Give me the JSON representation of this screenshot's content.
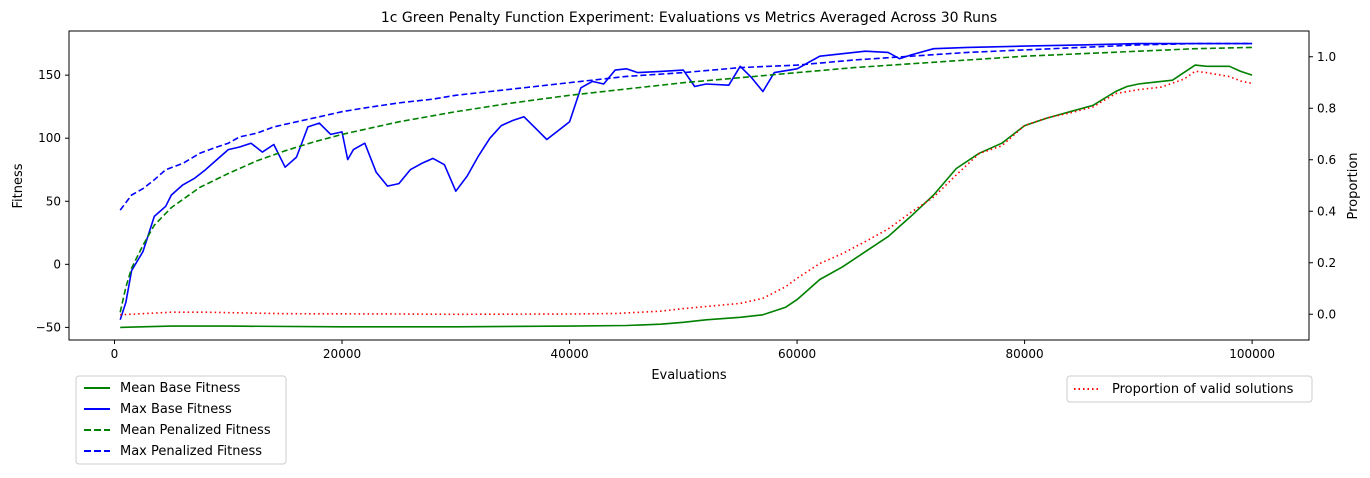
{
  "chart_data": {
    "type": "line",
    "title": "1c Green Penalty Function Experiment: Evaluations vs Metrics Averaged Across 30 Runs",
    "xlabel": "Evaluations",
    "ylabel": "Fitness",
    "y2label": "Proportion",
    "xlim": [
      -4000,
      105000
    ],
    "ylim": [
      -60,
      185
    ],
    "y2lim": [
      -0.1,
      1.1
    ],
    "xticks": [
      0,
      20000,
      40000,
      60000,
      80000,
      100000
    ],
    "xtick_labels": [
      "0",
      "20000",
      "40000",
      "60000",
      "80000",
      "100000"
    ],
    "yticks": [
      -50,
      0,
      50,
      100,
      150
    ],
    "ytick_labels": [
      "−50",
      "0",
      "50",
      "100",
      "150"
    ],
    "y2ticks": [
      0.0,
      0.2,
      0.4,
      0.6,
      0.8,
      1.0
    ],
    "y2tick_labels": [
      "0.0",
      "0.2",
      "0.4",
      "0.6",
      "0.8",
      "1.0"
    ],
    "series": [
      {
        "name": "Mean Base Fitness",
        "axis": "left",
        "color": "#008000",
        "dash": "solid",
        "points": [
          [
            500,
            -50
          ],
          [
            5000,
            -49
          ],
          [
            10000,
            -49
          ],
          [
            20000,
            -49.5
          ],
          [
            30000,
            -49.5
          ],
          [
            40000,
            -49
          ],
          [
            45000,
            -48.5
          ],
          [
            48000,
            -47.5
          ],
          [
            50000,
            -46
          ],
          [
            52000,
            -44
          ],
          [
            55000,
            -42
          ],
          [
            57000,
            -40
          ],
          [
            59000,
            -34
          ],
          [
            60000,
            -28
          ],
          [
            62000,
            -12
          ],
          [
            64000,
            -2
          ],
          [
            66000,
            10
          ],
          [
            68000,
            22
          ],
          [
            70000,
            38
          ],
          [
            72000,
            55
          ],
          [
            74000,
            76
          ],
          [
            76000,
            88
          ],
          [
            78000,
            96
          ],
          [
            80000,
            110
          ],
          [
            82000,
            116
          ],
          [
            84000,
            121
          ],
          [
            86000,
            126
          ],
          [
            88000,
            137
          ],
          [
            89000,
            141
          ],
          [
            90000,
            143
          ],
          [
            92000,
            145
          ],
          [
            93000,
            146
          ],
          [
            94000,
            152
          ],
          [
            95000,
            158
          ],
          [
            96000,
            157
          ],
          [
            98000,
            157
          ],
          [
            99000,
            153
          ],
          [
            100000,
            150
          ]
        ]
      },
      {
        "name": "Max Base Fitness",
        "axis": "left",
        "color": "#0000ff",
        "dash": "solid",
        "points": [
          [
            500,
            -44
          ],
          [
            1000,
            -30
          ],
          [
            1500,
            -5
          ],
          [
            2500,
            10
          ],
          [
            3500,
            38
          ],
          [
            4500,
            46
          ],
          [
            5000,
            55
          ],
          [
            6000,
            63
          ],
          [
            7000,
            68
          ],
          [
            8000,
            75
          ],
          [
            9000,
            83
          ],
          [
            10000,
            91
          ],
          [
            11000,
            93
          ],
          [
            12000,
            96
          ],
          [
            13000,
            89
          ],
          [
            14000,
            95
          ],
          [
            15000,
            77
          ],
          [
            16000,
            85
          ],
          [
            17000,
            109
          ],
          [
            18000,
            112
          ],
          [
            19000,
            103
          ],
          [
            20000,
            105
          ],
          [
            20500,
            83
          ],
          [
            21000,
            91
          ],
          [
            22000,
            96
          ],
          [
            23000,
            73
          ],
          [
            24000,
            62
          ],
          [
            25000,
            64
          ],
          [
            26000,
            75
          ],
          [
            27000,
            80
          ],
          [
            28000,
            84
          ],
          [
            29000,
            79
          ],
          [
            30000,
            58
          ],
          [
            31000,
            70
          ],
          [
            32000,
            86
          ],
          [
            33000,
            100
          ],
          [
            34000,
            110
          ],
          [
            35000,
            114
          ],
          [
            36000,
            117
          ],
          [
            37000,
            108
          ],
          [
            38000,
            99
          ],
          [
            39000,
            106
          ],
          [
            40000,
            113
          ],
          [
            41000,
            140
          ],
          [
            42000,
            145
          ],
          [
            43000,
            143
          ],
          [
            44000,
            154
          ],
          [
            45000,
            155
          ],
          [
            46000,
            152
          ],
          [
            48000,
            153
          ],
          [
            50000,
            154
          ],
          [
            51000,
            141
          ],
          [
            52000,
            143
          ],
          [
            54000,
            142
          ],
          [
            55000,
            157
          ],
          [
            56000,
            148
          ],
          [
            57000,
            137
          ],
          [
            58000,
            152
          ],
          [
            60000,
            155
          ],
          [
            61000,
            160
          ],
          [
            62000,
            165
          ],
          [
            64000,
            167
          ],
          [
            66000,
            169
          ],
          [
            68000,
            168
          ],
          [
            69000,
            163
          ],
          [
            70000,
            166
          ],
          [
            72000,
            171
          ],
          [
            75000,
            172
          ],
          [
            80000,
            173
          ],
          [
            85000,
            174
          ],
          [
            90000,
            175
          ],
          [
            100000,
            175
          ]
        ]
      },
      {
        "name": "Mean Penalized Fitness",
        "axis": "left",
        "color": "#008000",
        "dash": "dashed",
        "points": [
          [
            500,
            -38
          ],
          [
            1000,
            -18
          ],
          [
            1500,
            -3
          ],
          [
            2500,
            15
          ],
          [
            3500,
            31
          ],
          [
            5000,
            45
          ],
          [
            7500,
            61
          ],
          [
            10000,
            72
          ],
          [
            12500,
            82
          ],
          [
            15000,
            90
          ],
          [
            17500,
            97
          ],
          [
            20000,
            103
          ],
          [
            25000,
            113
          ],
          [
            30000,
            121
          ],
          [
            35000,
            128
          ],
          [
            40000,
            134
          ],
          [
            45000,
            139
          ],
          [
            50000,
            144
          ],
          [
            55000,
            148
          ],
          [
            60000,
            152
          ],
          [
            65000,
            156
          ],
          [
            70000,
            159
          ],
          [
            75000,
            162
          ],
          [
            80000,
            165
          ],
          [
            85000,
            167
          ],
          [
            90000,
            169
          ],
          [
            95000,
            171
          ],
          [
            100000,
            172
          ]
        ]
      },
      {
        "name": "Max Penalized Fitness",
        "axis": "left",
        "color": "#0000ff",
        "dash": "dashed",
        "points": [
          [
            500,
            43
          ],
          [
            1500,
            55
          ],
          [
            2500,
            60
          ],
          [
            3500,
            67
          ],
          [
            4500,
            75
          ],
          [
            6000,
            80
          ],
          [
            7500,
            88
          ],
          [
            9000,
            93
          ],
          [
            10000,
            96
          ],
          [
            11000,
            101
          ],
          [
            12500,
            104
          ],
          [
            14000,
            109
          ],
          [
            16000,
            113
          ],
          [
            18000,
            117
          ],
          [
            20000,
            121
          ],
          [
            22000,
            124
          ],
          [
            25000,
            128
          ],
          [
            28000,
            131
          ],
          [
            30000,
            134
          ],
          [
            33000,
            137
          ],
          [
            35000,
            139
          ],
          [
            38000,
            142
          ],
          [
            41000,
            145
          ],
          [
            45000,
            149
          ],
          [
            50000,
            152
          ],
          [
            55000,
            156
          ],
          [
            60000,
            158
          ],
          [
            65000,
            162
          ],
          [
            70000,
            165
          ],
          [
            75000,
            168
          ],
          [
            80000,
            170
          ],
          [
            85000,
            172
          ],
          [
            90000,
            174
          ],
          [
            95000,
            175
          ],
          [
            100000,
            175
          ]
        ]
      },
      {
        "name": "Proportion of valid solutions",
        "axis": "right",
        "color": "#ff0000",
        "dash": "dotted",
        "points": [
          [
            500,
            -0.002
          ],
          [
            5000,
            0.008
          ],
          [
            8000,
            0.008
          ],
          [
            15000,
            0.002
          ],
          [
            25000,
            0.001
          ],
          [
            30000,
            0.0
          ],
          [
            40000,
            0.001
          ],
          [
            44000,
            0.003
          ],
          [
            48000,
            0.012
          ],
          [
            50000,
            0.022
          ],
          [
            52000,
            0.03
          ],
          [
            55000,
            0.042
          ],
          [
            57000,
            0.062
          ],
          [
            59000,
            0.107
          ],
          [
            60000,
            0.14
          ],
          [
            62000,
            0.197
          ],
          [
            64000,
            0.236
          ],
          [
            66000,
            0.282
          ],
          [
            68000,
            0.331
          ],
          [
            70000,
            0.395
          ],
          [
            72000,
            0.455
          ],
          [
            74000,
            0.541
          ],
          [
            76000,
            0.624
          ],
          [
            78000,
            0.654
          ],
          [
            80000,
            0.733
          ],
          [
            82000,
            0.763
          ],
          [
            84000,
            0.782
          ],
          [
            86000,
            0.805
          ],
          [
            88000,
            0.857
          ],
          [
            90000,
            0.872
          ],
          [
            92000,
            0.882
          ],
          [
            94000,
            0.913
          ],
          [
            95000,
            0.944
          ],
          [
            96000,
            0.938
          ],
          [
            98000,
            0.923
          ],
          [
            99000,
            0.906
          ],
          [
            100000,
            0.896
          ]
        ]
      }
    ],
    "legend_left": [
      "Mean Base Fitness",
      "Max Base Fitness",
      "Mean Penalized Fitness",
      "Max Penalized Fitness"
    ],
    "legend_right": [
      "Proportion of valid solutions"
    ]
  }
}
